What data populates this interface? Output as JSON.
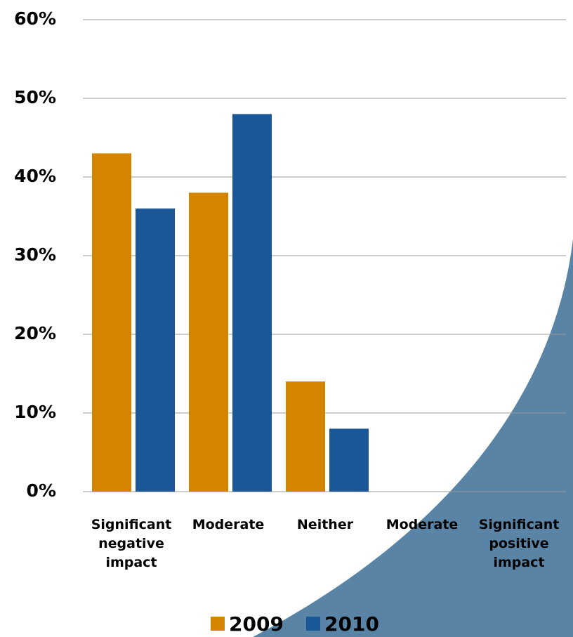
{
  "chart_data": {
    "type": "bar",
    "categories": [
      "Significant negative impact",
      "Moderate",
      "Neither",
      "Moderate",
      "Significant positive impact"
    ],
    "series": [
      {
        "name": "2009",
        "color": "#d48500",
        "values": [
          43,
          38,
          14,
          0,
          0
        ]
      },
      {
        "name": "2010",
        "color": "#1a5796",
        "values": [
          36,
          48,
          8,
          0,
          0
        ]
      }
    ],
    "ylim": [
      0,
      60
    ],
    "yticks": [
      {
        "value": 0,
        "label": "0%"
      },
      {
        "value": 10,
        "label": "10%"
      },
      {
        "value": 20,
        "label": "20%"
      },
      {
        "value": 30,
        "label": "30%"
      },
      {
        "value": 40,
        "label": "40%"
      },
      {
        "value": 50,
        "label": "50%"
      },
      {
        "value": 60,
        "label": "60%"
      }
    ],
    "grid": true
  }
}
